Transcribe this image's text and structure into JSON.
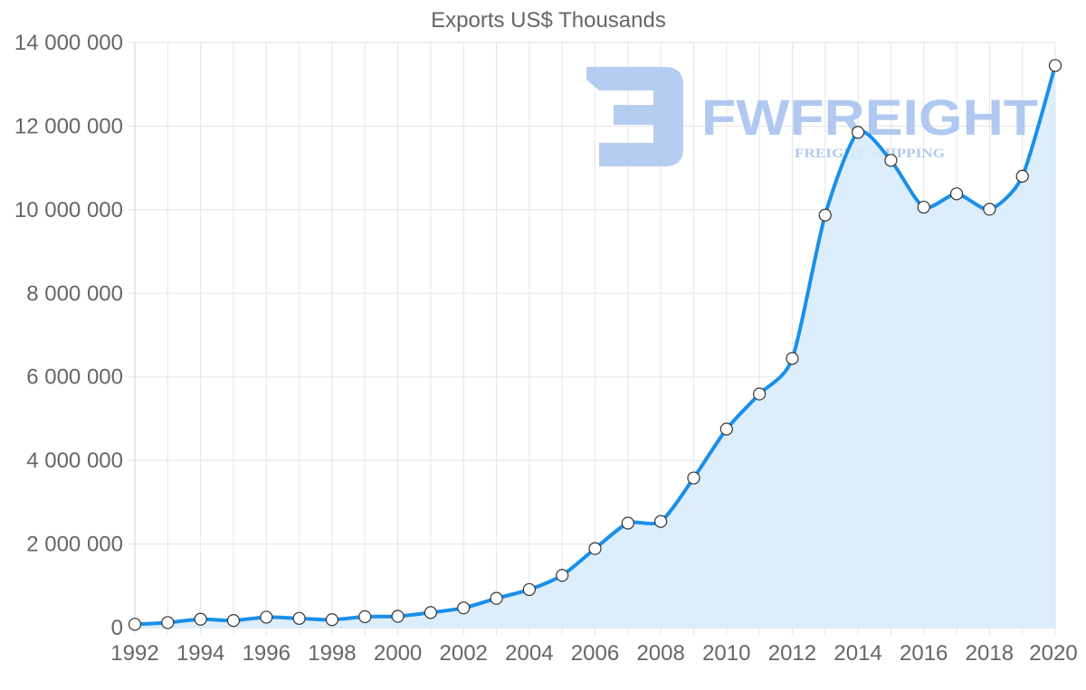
{
  "chart_data": {
    "type": "area",
    "title": "Exports US$ Thousands",
    "xlabel": "",
    "ylabel": "",
    "x": [
      1992,
      1993,
      1994,
      1995,
      1996,
      1997,
      1998,
      1999,
      2000,
      2001,
      2002,
      2003,
      2004,
      2005,
      2006,
      2007,
      2008,
      2009,
      2010,
      2011,
      2012,
      2013,
      2014,
      2015,
      2016,
      2017,
      2018,
      2019,
      2020
    ],
    "series": [
      {
        "name": "Exports US$ Thousands",
        "values": [
          80000,
          120000,
          200000,
          170000,
          250000,
          220000,
          190000,
          260000,
          270000,
          360000,
          470000,
          700000,
          910000,
          1250000,
          1890000,
          2500000,
          2540000,
          3580000,
          4750000,
          5590000,
          6440000,
          9870000,
          11850000,
          11180000,
          10060000,
          10380000,
          10010000,
          10800000,
          13450000
        ]
      }
    ],
    "ylim": [
      0,
      14000000
    ],
    "y_ticks": [
      0,
      2000000,
      4000000,
      6000000,
      8000000,
      10000000,
      12000000,
      14000000
    ],
    "y_tick_labels": [
      "0",
      "2 000 000",
      "4 000 000",
      "6 000 000",
      "8 000 000",
      "10 000 000",
      "12 000 000",
      "14 000 000"
    ],
    "x_tick_labels": [
      "1992",
      "1994",
      "1996",
      "1998",
      "2000",
      "2002",
      "2004",
      "2006",
      "2008",
      "2010",
      "2012",
      "2014",
      "2016",
      "2018",
      "2020"
    ],
    "grid": true,
    "legend": "none"
  },
  "watermark": {
    "brand": "FWFREIGHT",
    "tagline": "FREIGHT SHIPPING"
  },
  "colors": {
    "line": "#1a8fea",
    "fill": "#d8ebfb",
    "watermark": "#a9c4f0",
    "marker_fill": "#ffffff",
    "marker_stroke": "#333333"
  }
}
